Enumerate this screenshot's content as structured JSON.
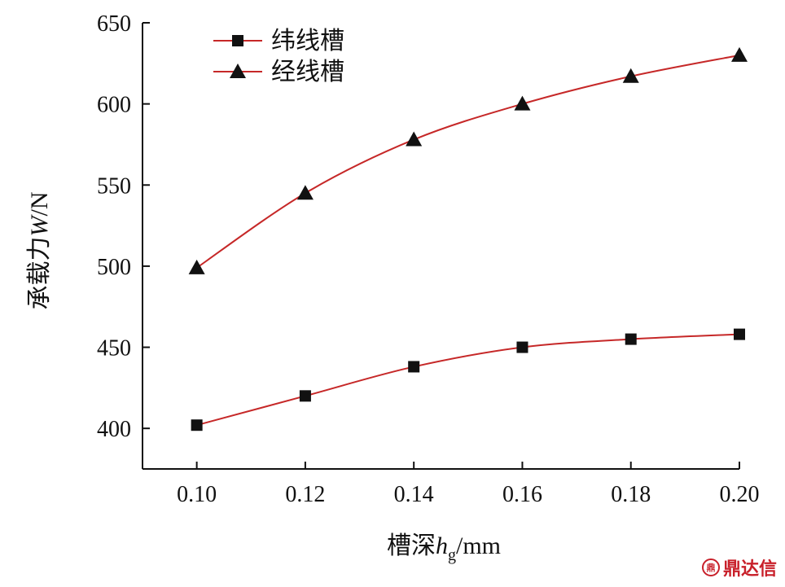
{
  "chart_data": {
    "type": "line",
    "title": "",
    "xlabel": "槽深",
    "xlabel_var": "h",
    "xlabel_sub": "g",
    "xlabel_unit": "/mm",
    "ylabel": "承载力",
    "ylabel_var": "W",
    "ylabel_unit": "/N",
    "x": [
      0.1,
      0.12,
      0.14,
      0.16,
      0.18,
      0.2
    ],
    "x_ticks": [
      "0.10",
      "0.12",
      "0.14",
      "0.16",
      "0.18",
      "0.20"
    ],
    "xlim": [
      0.09,
      0.2
    ],
    "ylim": [
      375,
      650
    ],
    "y_ticks": [
      "400",
      "450",
      "500",
      "550",
      "600",
      "650"
    ],
    "y_tick_values": [
      400,
      450,
      500,
      550,
      600,
      650
    ],
    "grid": false,
    "legend_position": "top-left",
    "line_color": "#c62828",
    "marker_color": "#111111",
    "series": [
      {
        "name": "纬线槽",
        "marker": "square",
        "values": [
          402,
          420,
          438,
          450,
          455,
          458
        ]
      },
      {
        "name": "经线槽",
        "marker": "triangle",
        "values": [
          499,
          545,
          578,
          600,
          617,
          630
        ]
      }
    ]
  },
  "watermark": {
    "logo_glyph": "鼎",
    "text": "鼎达信"
  }
}
